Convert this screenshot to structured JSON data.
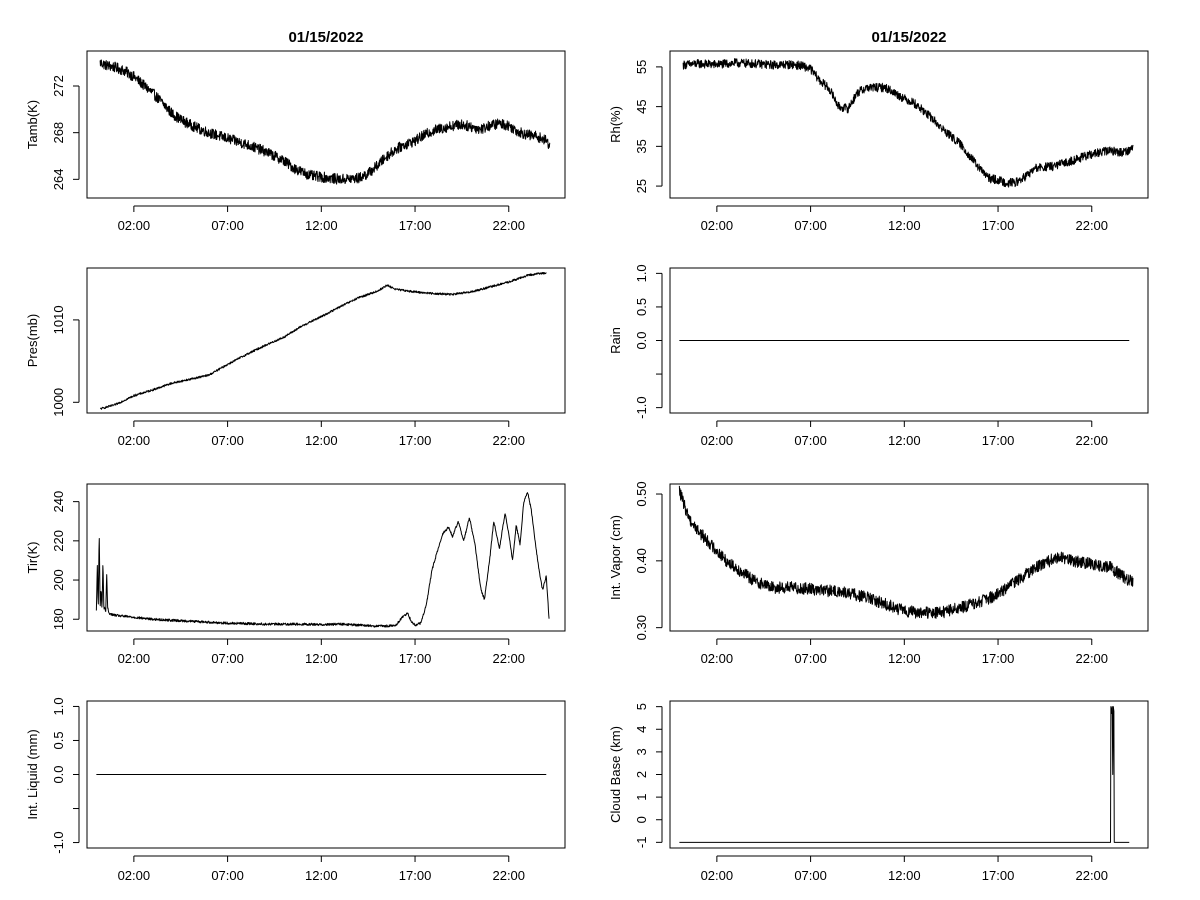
{
  "chart_data": [
    {
      "id": "tamb",
      "type": "line",
      "title": "01/15/2022",
      "xlabel": "",
      "ylabel": "Tamb(K)",
      "x_ticks": [
        "02:00",
        "07:00",
        "12:00",
        "17:00",
        "22:00"
      ],
      "x_tick_hours": [
        2,
        7,
        12,
        17,
        22
      ],
      "xlim": [
        -0.5,
        25.0
      ],
      "y_ticks": [
        264,
        268,
        272
      ],
      "ylim": [
        262.4,
        275.0
      ],
      "noise": 0.45,
      "series": [
        {
          "x": [
            0.2,
            0.5,
            1.0,
            1.5,
            2.0,
            2.5,
            3.0,
            3.5,
            4.0,
            4.5,
            5.0,
            5.5,
            6.0,
            7.0,
            8.0,
            9.0,
            10.0,
            10.5,
            11.0,
            11.5,
            12.0,
            13.0,
            14.0,
            14.5,
            15.0,
            15.5,
            16.0,
            16.5,
            17.0,
            17.5,
            18.0,
            18.5,
            19.0,
            19.5,
            20.0,
            20.5,
            21.0,
            21.5,
            22.0,
            22.5,
            23.0,
            23.5,
            24.0,
            24.2
          ],
          "values": [
            274.0,
            273.8,
            273.6,
            273.3,
            272.8,
            272.1,
            271.4,
            270.6,
            269.7,
            269.1,
            268.7,
            268.3,
            268.0,
            267.5,
            267.0,
            266.4,
            265.6,
            265.0,
            264.6,
            264.3,
            264.2,
            264.0,
            264.1,
            264.5,
            265.2,
            266.0,
            266.6,
            267.0,
            267.3,
            267.8,
            268.2,
            268.4,
            268.6,
            268.7,
            268.5,
            268.3,
            268.6,
            268.8,
            268.6,
            268.1,
            267.8,
            267.7,
            267.3,
            266.9
          ]
        }
      ]
    },
    {
      "id": "rh",
      "type": "line",
      "title": "01/15/2022",
      "xlabel": "",
      "ylabel": "Rh(%)",
      "x_ticks": [
        "02:00",
        "07:00",
        "12:00",
        "17:00",
        "22:00"
      ],
      "x_tick_hours": [
        2,
        7,
        12,
        17,
        22
      ],
      "xlim": [
        -0.5,
        25.0
      ],
      "y_ticks": [
        25,
        35,
        45,
        55
      ],
      "ylim": [
        22.0,
        59.0
      ],
      "noise": 1.1,
      "series": [
        {
          "x": [
            0.2,
            1.0,
            2.0,
            3.0,
            4.0,
            5.0,
            6.0,
            6.5,
            7.0,
            7.5,
            8.0,
            8.5,
            9.0,
            9.5,
            10.0,
            11.0,
            12.0,
            12.5,
            13.0,
            13.5,
            14.0,
            14.5,
            15.0,
            15.5,
            16.0,
            16.5,
            17.0,
            17.5,
            18.0,
            18.5,
            19.0,
            20.0,
            21.0,
            22.0,
            23.0,
            23.5,
            24.0,
            24.2
          ],
          "values": [
            55.5,
            55.8,
            55.6,
            56.0,
            55.8,
            55.5,
            55.6,
            55.3,
            54.5,
            51.5,
            49.5,
            45.0,
            44.5,
            48.5,
            49.8,
            49.8,
            47.0,
            46.0,
            44.0,
            42.0,
            39.5,
            37.5,
            35.5,
            32.5,
            29.5,
            27.0,
            26.5,
            25.8,
            26.0,
            27.5,
            29.5,
            30.0,
            31.5,
            33.0,
            34.0,
            33.5,
            34.0,
            34.8
          ]
        }
      ]
    },
    {
      "id": "pres",
      "type": "line",
      "title": "",
      "xlabel": "",
      "ylabel": "Pres(mb)",
      "x_ticks": [
        "02:00",
        "07:00",
        "12:00",
        "17:00",
        "22:00"
      ],
      "x_tick_hours": [
        2,
        7,
        12,
        17,
        22
      ],
      "xlim": [
        -0.5,
        25.0
      ],
      "y_ticks": [
        1000,
        1010
      ],
      "ylim": [
        998.7,
        1016.3
      ],
      "noise": 0.12,
      "series": [
        {
          "x": [
            0.2,
            1.0,
            2.0,
            3.0,
            4.0,
            5.0,
            6.0,
            7.0,
            8.0,
            9.0,
            10.0,
            11.0,
            12.0,
            13.0,
            14.0,
            15.0,
            15.5,
            16.0,
            17.0,
            18.0,
            19.0,
            20.0,
            21.0,
            22.0,
            23.0,
            23.5,
            24.0
          ],
          "values": [
            999.2,
            999.7,
            1000.8,
            1001.5,
            1002.3,
            1002.8,
            1003.3,
            1004.6,
            1005.8,
            1006.9,
            1007.9,
            1009.3,
            1010.4,
            1011.6,
            1012.7,
            1013.5,
            1014.2,
            1013.7,
            1013.4,
            1013.2,
            1013.1,
            1013.4,
            1014.0,
            1014.6,
            1015.4,
            1015.6,
            1015.7
          ]
        }
      ]
    },
    {
      "id": "rain",
      "type": "line",
      "title": "",
      "xlabel": "",
      "ylabel": "Rain",
      "x_ticks": [
        "02:00",
        "07:00",
        "12:00",
        "17:00",
        "22:00"
      ],
      "x_tick_hours": [
        2,
        7,
        12,
        17,
        22
      ],
      "xlim": [
        -0.5,
        25.0
      ],
      "y_ticks": [
        -1.0,
        -0.5,
        0.0,
        0.5,
        1.0
      ],
      "y_tick_labels": [
        "-1.0",
        "",
        "0.0",
        "0.5",
        "1.0"
      ],
      "ylim": [
        -1.08,
        1.08
      ],
      "noise": 0,
      "series": [
        {
          "x": [
            0.0,
            24.0
          ],
          "values": [
            0,
            0
          ]
        }
      ]
    },
    {
      "id": "tir",
      "type": "line",
      "title": "",
      "xlabel": "",
      "ylabel": "Tir(K)",
      "x_ticks": [
        "02:00",
        "07:00",
        "12:00",
        "17:00",
        "22:00"
      ],
      "x_tick_hours": [
        2,
        7,
        12,
        17,
        22
      ],
      "xlim": [
        -0.5,
        25.0
      ],
      "y_ticks": [
        180,
        200,
        220,
        240
      ],
      "ylim": [
        174.0,
        249.0
      ],
      "noise": 0.6,
      "series": [
        {
          "x": [
            0.0,
            0.05,
            0.1,
            0.15,
            0.2,
            0.25,
            0.3,
            0.35,
            0.4,
            0.45,
            0.5,
            0.55,
            0.6,
            0.65,
            0.7,
            0.8,
            1.0,
            2.0,
            3.0,
            4.0,
            5.0,
            6.0,
            7.0,
            8.0,
            9.0,
            10.0,
            11.0,
            12.0,
            13.0,
            14.0,
            15.0,
            15.5,
            16.0,
            16.3,
            16.6,
            16.8,
            17.0,
            17.3,
            17.6,
            17.9,
            18.2,
            18.5,
            18.8,
            19.0,
            19.3,
            19.6,
            19.9,
            20.2,
            20.5,
            20.7,
            21.0,
            21.2,
            21.5,
            21.8,
            22.0,
            22.2,
            22.4,
            22.6,
            22.8,
            23.0,
            23.2,
            23.4,
            23.6,
            23.8,
            24.0,
            24.15
          ],
          "values": [
            184,
            208,
            185,
            225,
            186,
            196,
            184,
            210,
            185,
            186,
            184,
            203,
            186,
            184,
            183,
            182.5,
            182,
            181,
            180,
            179.5,
            179,
            178.5,
            178,
            177.8,
            177.5,
            177.5,
            177.5,
            177.3,
            177.5,
            177.0,
            176.5,
            176.5,
            177.0,
            181.0,
            183.0,
            179.0,
            177.0,
            178.0,
            187.0,
            205.0,
            215.0,
            224.0,
            227.0,
            222.0,
            230.0,
            220.0,
            232.0,
            218.0,
            196.0,
            190.0,
            212.0,
            230.0,
            216.0,
            234.0,
            224.0,
            210.0,
            228.0,
            218.0,
            240.0,
            245.0,
            236.0,
            220.0,
            206.0,
            195.0,
            202.0,
            180.0
          ]
        }
      ]
    },
    {
      "id": "vapor",
      "type": "line",
      "title": "",
      "xlabel": "",
      "ylabel": "Int. Vapor (cm)",
      "x_ticks": [
        "02:00",
        "07:00",
        "12:00",
        "17:00",
        "22:00"
      ],
      "x_tick_hours": [
        2,
        7,
        12,
        17,
        22
      ],
      "xlim": [
        -0.5,
        25.0
      ],
      "y_ticks": [
        0.3,
        0.4,
        0.5
      ],
      "y_tick_labels": [
        "0.30",
        "0.40",
        "0.50"
      ],
      "ylim": [
        0.295,
        0.515
      ],
      "noise": 0.009,
      "series": [
        {
          "x": [
            0.0,
            0.3,
            0.6,
            1.0,
            1.5,
            2.0,
            2.5,
            3.0,
            3.5,
            4.0,
            5.0,
            6.0,
            7.0,
            8.0,
            9.0,
            10.0,
            11.0,
            12.0,
            13.0,
            14.0,
            15.0,
            16.0,
            17.0,
            17.5,
            18.0,
            18.5,
            19.0,
            19.5,
            20.0,
            20.5,
            21.0,
            22.0,
            23.0,
            23.5,
            24.0,
            24.2
          ],
          "values": [
            0.505,
            0.48,
            0.46,
            0.445,
            0.43,
            0.415,
            0.4,
            0.39,
            0.38,
            0.37,
            0.36,
            0.36,
            0.358,
            0.355,
            0.352,
            0.345,
            0.335,
            0.325,
            0.322,
            0.323,
            0.33,
            0.338,
            0.35,
            0.36,
            0.37,
            0.38,
            0.39,
            0.395,
            0.405,
            0.405,
            0.4,
            0.395,
            0.39,
            0.38,
            0.37,
            0.37
          ]
        }
      ]
    },
    {
      "id": "liquid",
      "type": "line",
      "title": "",
      "xlabel": "",
      "ylabel": "Int. Liquid (mm)",
      "x_ticks": [
        "02:00",
        "07:00",
        "12:00",
        "17:00",
        "22:00"
      ],
      "x_tick_hours": [
        2,
        7,
        12,
        17,
        22
      ],
      "xlim": [
        -0.5,
        25.0
      ],
      "y_ticks": [
        -1.0,
        -0.5,
        0.0,
        0.5,
        1.0
      ],
      "y_tick_labels": [
        "-1.0",
        "",
        "0.0",
        "0.5",
        "1.0"
      ],
      "ylim": [
        -1.08,
        1.08
      ],
      "noise": 0,
      "series": [
        {
          "x": [
            0.0,
            24.0
          ],
          "values": [
            0,
            0
          ]
        }
      ]
    },
    {
      "id": "cloud",
      "type": "line",
      "title": "",
      "xlabel": "",
      "ylabel": "Cloud Base (km)",
      "x_ticks": [
        "02:00",
        "07:00",
        "12:00",
        "17:00",
        "22:00"
      ],
      "x_tick_hours": [
        2,
        7,
        12,
        17,
        22
      ],
      "xlim": [
        -0.5,
        25.0
      ],
      "y_ticks": [
        -1,
        0,
        1,
        2,
        3,
        4,
        5
      ],
      "ylim": [
        -1.25,
        5.25
      ],
      "noise": 0,
      "series": [
        {
          "x": [
            0.0,
            23.0,
            23.02,
            23.06,
            23.09,
            23.12,
            23.15,
            23.18,
            23.2,
            23.3,
            24.0
          ],
          "values": [
            -1,
            -1,
            5,
            4.7,
            5,
            2,
            5,
            4.8,
            -1,
            -1,
            -1
          ]
        }
      ]
    }
  ]
}
